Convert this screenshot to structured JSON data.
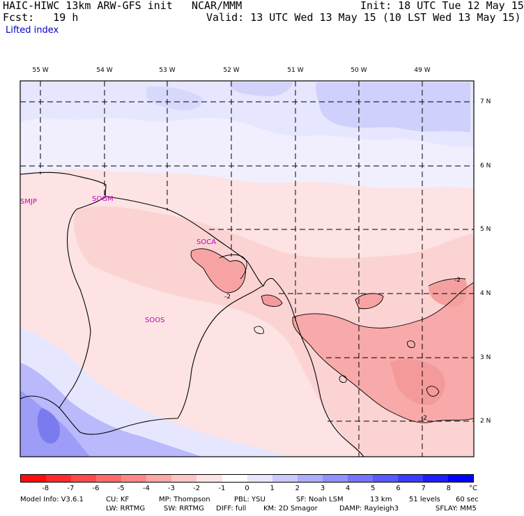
{
  "header": {
    "model": "HAIC-HIWC 13km ARW-GFS init",
    "org": "NCAR/MMM",
    "init": "Init: 18 UTC Tue 12 May 15",
    "fcst": "Fcst:   19 h",
    "valid": "Valid: 13 UTC Wed 13 May 15 (10 LST Wed 13 May 15)",
    "field": "Lifted index"
  },
  "lon_labels": [
    "55 W",
    "54 W",
    "53 W",
    "52 W",
    "51 W",
    "50 W",
    "49 W"
  ],
  "lat_labels": [
    "7 N",
    "6 N",
    "5 N",
    "4 N",
    "3 N",
    "2 N"
  ],
  "stations": [
    "SMJP",
    "SOGM",
    "SOCA",
    "SOOS"
  ],
  "contour_labels": [
    "-2",
    "-2",
    "-2"
  ],
  "colorbar": {
    "unit": "°C",
    "ticks": [
      "-8",
      "-7",
      "-6",
      "-5",
      "-4",
      "-3",
      "-2",
      "-1",
      "0",
      "1",
      "2",
      "3",
      "4",
      "5",
      "6",
      "7",
      "8"
    ],
    "colors": [
      "#ff0d0d",
      "#ff2b2b",
      "#ff4a4a",
      "#ff6969",
      "#ff8787",
      "#ffa6a6",
      "#ffc4c4",
      "#ffe3e3",
      "#ffffff",
      "#e6e6ff",
      "#c9c9ff",
      "#adadff",
      "#9191ff",
      "#7474ff",
      "#5858ff",
      "#3c3cff",
      "#1f1fff",
      "#0000ff"
    ]
  },
  "footer": {
    "line1": [
      "Model Info: V3.6.1",
      "CU: KF",
      "MP: Thompson",
      "PBL: YSU",
      "SF: Noah LSM",
      "13 km",
      "51 levels",
      "60 sec"
    ],
    "line2": [
      "LW: RRTMG",
      "SW: RRTMG",
      "DIFF: full",
      "KM: 2D Smagor",
      "DAMP: Rayleigh3",
      "SFLAY: MM5"
    ]
  }
}
